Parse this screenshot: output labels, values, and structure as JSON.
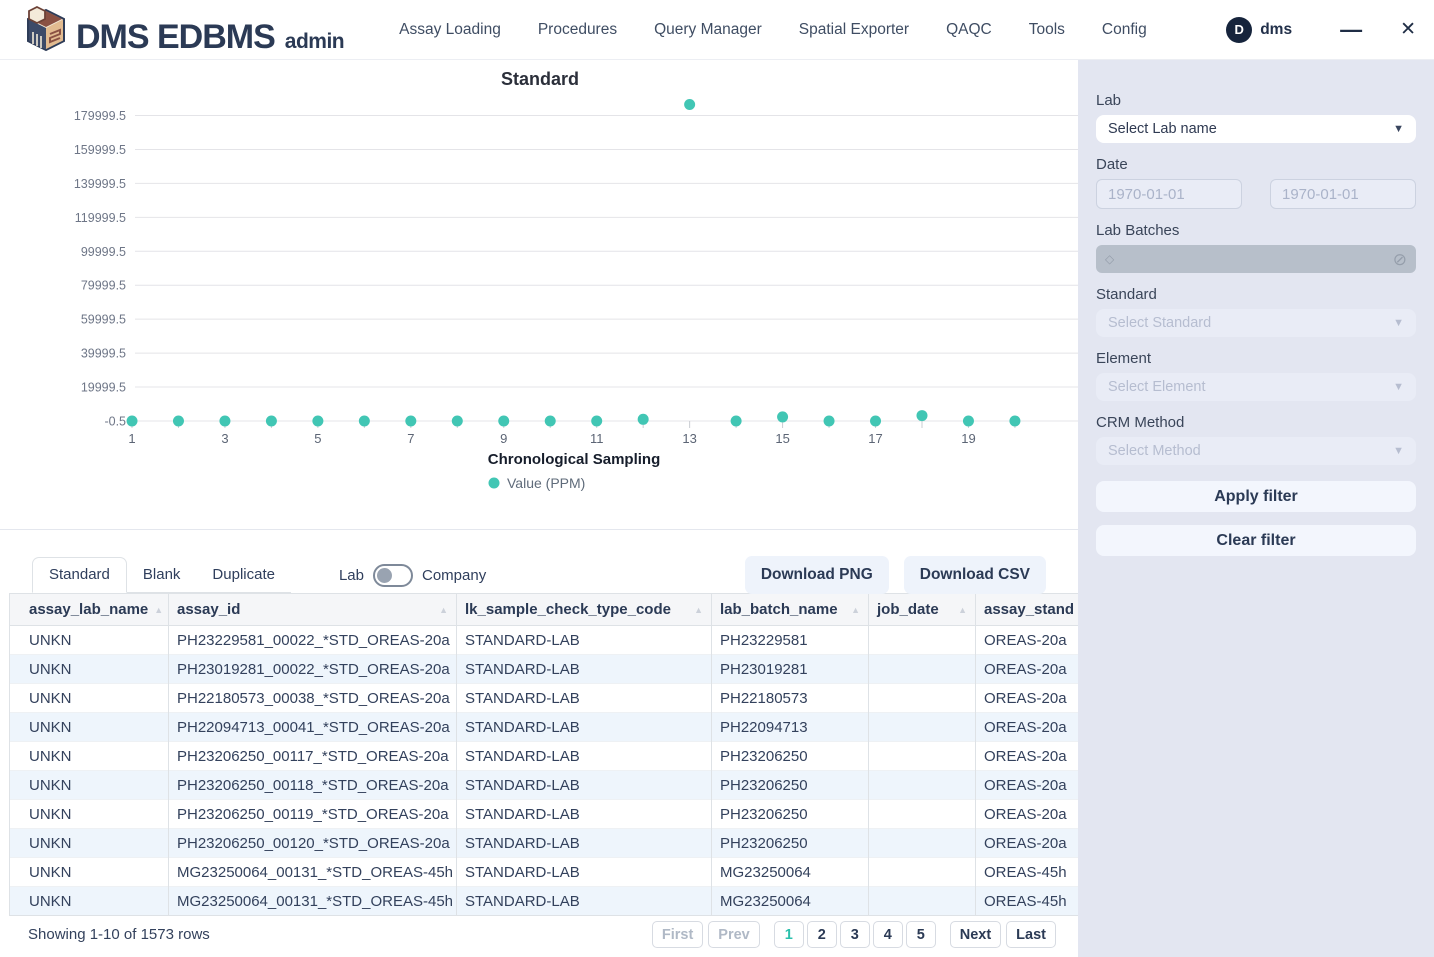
{
  "navbar": {
    "brand": "DMS EDBMS",
    "brand_suffix": "admin",
    "items": [
      "Assay Loading",
      "Procedures",
      "Query Manager",
      "Spatial Exporter",
      "QAQC",
      "Tools",
      "Config"
    ],
    "user_initial": "D",
    "user_name": "dms"
  },
  "glyphs": {
    "minimize": "—",
    "close": "✕",
    "caret_down": "▼",
    "sort_asc": "▲",
    "diamond": "◇",
    "blocked": "⊘"
  },
  "chart_data": {
    "type": "scatter",
    "title": "Standard",
    "xlabel": "Chronological Sampling",
    "ylabel": "",
    "legend": [
      "Value (PPM)"
    ],
    "legend_position": "bottom",
    "point_color": "#41c6b4",
    "grid": true,
    "x": [
      1,
      2,
      3,
      4,
      5,
      6,
      7,
      8,
      9,
      10,
      11,
      12,
      13,
      14,
      15,
      16,
      17,
      18,
      19,
      20
    ],
    "values": [
      0,
      0,
      0,
      0,
      0,
      0,
      0,
      0,
      0,
      0,
      0,
      1000,
      186500,
      0,
      2400,
      0,
      0,
      3200,
      0,
      0
    ],
    "yticks": [
      -0.5,
      19999.5,
      39999.5,
      59999.5,
      79999.5,
      99999.5,
      119999.5,
      139999.5,
      159999.5,
      179999.5
    ],
    "xtick_labels": [
      1,
      3,
      5,
      7,
      9,
      11,
      13,
      15,
      17,
      19
    ],
    "ylim": [
      -0.5,
      199999.5
    ],
    "xlim": [
      1,
      20
    ]
  },
  "filters": {
    "lab_label": "Lab",
    "lab_placeholder": "Select Lab name",
    "date_label": "Date",
    "date_from": "1970-01-01",
    "date_to": "1970-01-01",
    "lab_batches_label": "Lab Batches",
    "standard_label": "Standard",
    "standard_placeholder": "Select Standard",
    "element_label": "Element",
    "element_placeholder": "Select Element",
    "crm_label": "CRM Method",
    "crm_placeholder": "Select Method",
    "apply_label": "Apply filter",
    "clear_label": "Clear filter"
  },
  "toolbar": {
    "tabs": [
      "Standard",
      "Blank",
      "Duplicate"
    ],
    "active_tab": "Standard",
    "toggle_left": "Lab",
    "toggle_right": "Company",
    "toggle_state": "left",
    "download_png": "Download PNG",
    "download_csv": "Download CSV"
  },
  "table": {
    "columns": [
      "assay_lab_name",
      "assay_id",
      "lk_sample_check_type_code",
      "lab_batch_name",
      "job_date",
      "assay_stand"
    ],
    "rows": [
      [
        "UNKN",
        "PH23229581_00022_*STD_OREAS-20a",
        "STANDARD-LAB",
        "PH23229581",
        "",
        "OREAS-20a"
      ],
      [
        "UNKN",
        "PH23019281_00022_*STD_OREAS-20a",
        "STANDARD-LAB",
        "PH23019281",
        "",
        "OREAS-20a"
      ],
      [
        "UNKN",
        "PH22180573_00038_*STD_OREAS-20a",
        "STANDARD-LAB",
        "PH22180573",
        "",
        "OREAS-20a"
      ],
      [
        "UNKN",
        "PH22094713_00041_*STD_OREAS-20a",
        "STANDARD-LAB",
        "PH22094713",
        "",
        "OREAS-20a"
      ],
      [
        "UNKN",
        "PH23206250_00117_*STD_OREAS-20a",
        "STANDARD-LAB",
        "PH23206250",
        "",
        "OREAS-20a"
      ],
      [
        "UNKN",
        "PH23206250_00118_*STD_OREAS-20a",
        "STANDARD-LAB",
        "PH23206250",
        "",
        "OREAS-20a"
      ],
      [
        "UNKN",
        "PH23206250_00119_*STD_OREAS-20a",
        "STANDARD-LAB",
        "PH23206250",
        "",
        "OREAS-20a"
      ],
      [
        "UNKN",
        "PH23206250_00120_*STD_OREAS-20a",
        "STANDARD-LAB",
        "PH23206250",
        "",
        "OREAS-20a"
      ],
      [
        "UNKN",
        "MG23250064_00131_*STD_OREAS-45h",
        "STANDARD-LAB",
        "MG23250064",
        "",
        "OREAS-45h"
      ],
      [
        "UNKN",
        "MG23250064_00131_*STD_OREAS-45h",
        "STANDARD-LAB",
        "MG23250064",
        "",
        "OREAS-45h"
      ]
    ]
  },
  "footer": {
    "summary": "Showing 1-10 of 1573 rows",
    "first": "First",
    "prev": "Prev",
    "pages": [
      "1",
      "2",
      "3",
      "4",
      "5"
    ],
    "active_page": "1",
    "next": "Next",
    "last": "Last"
  }
}
